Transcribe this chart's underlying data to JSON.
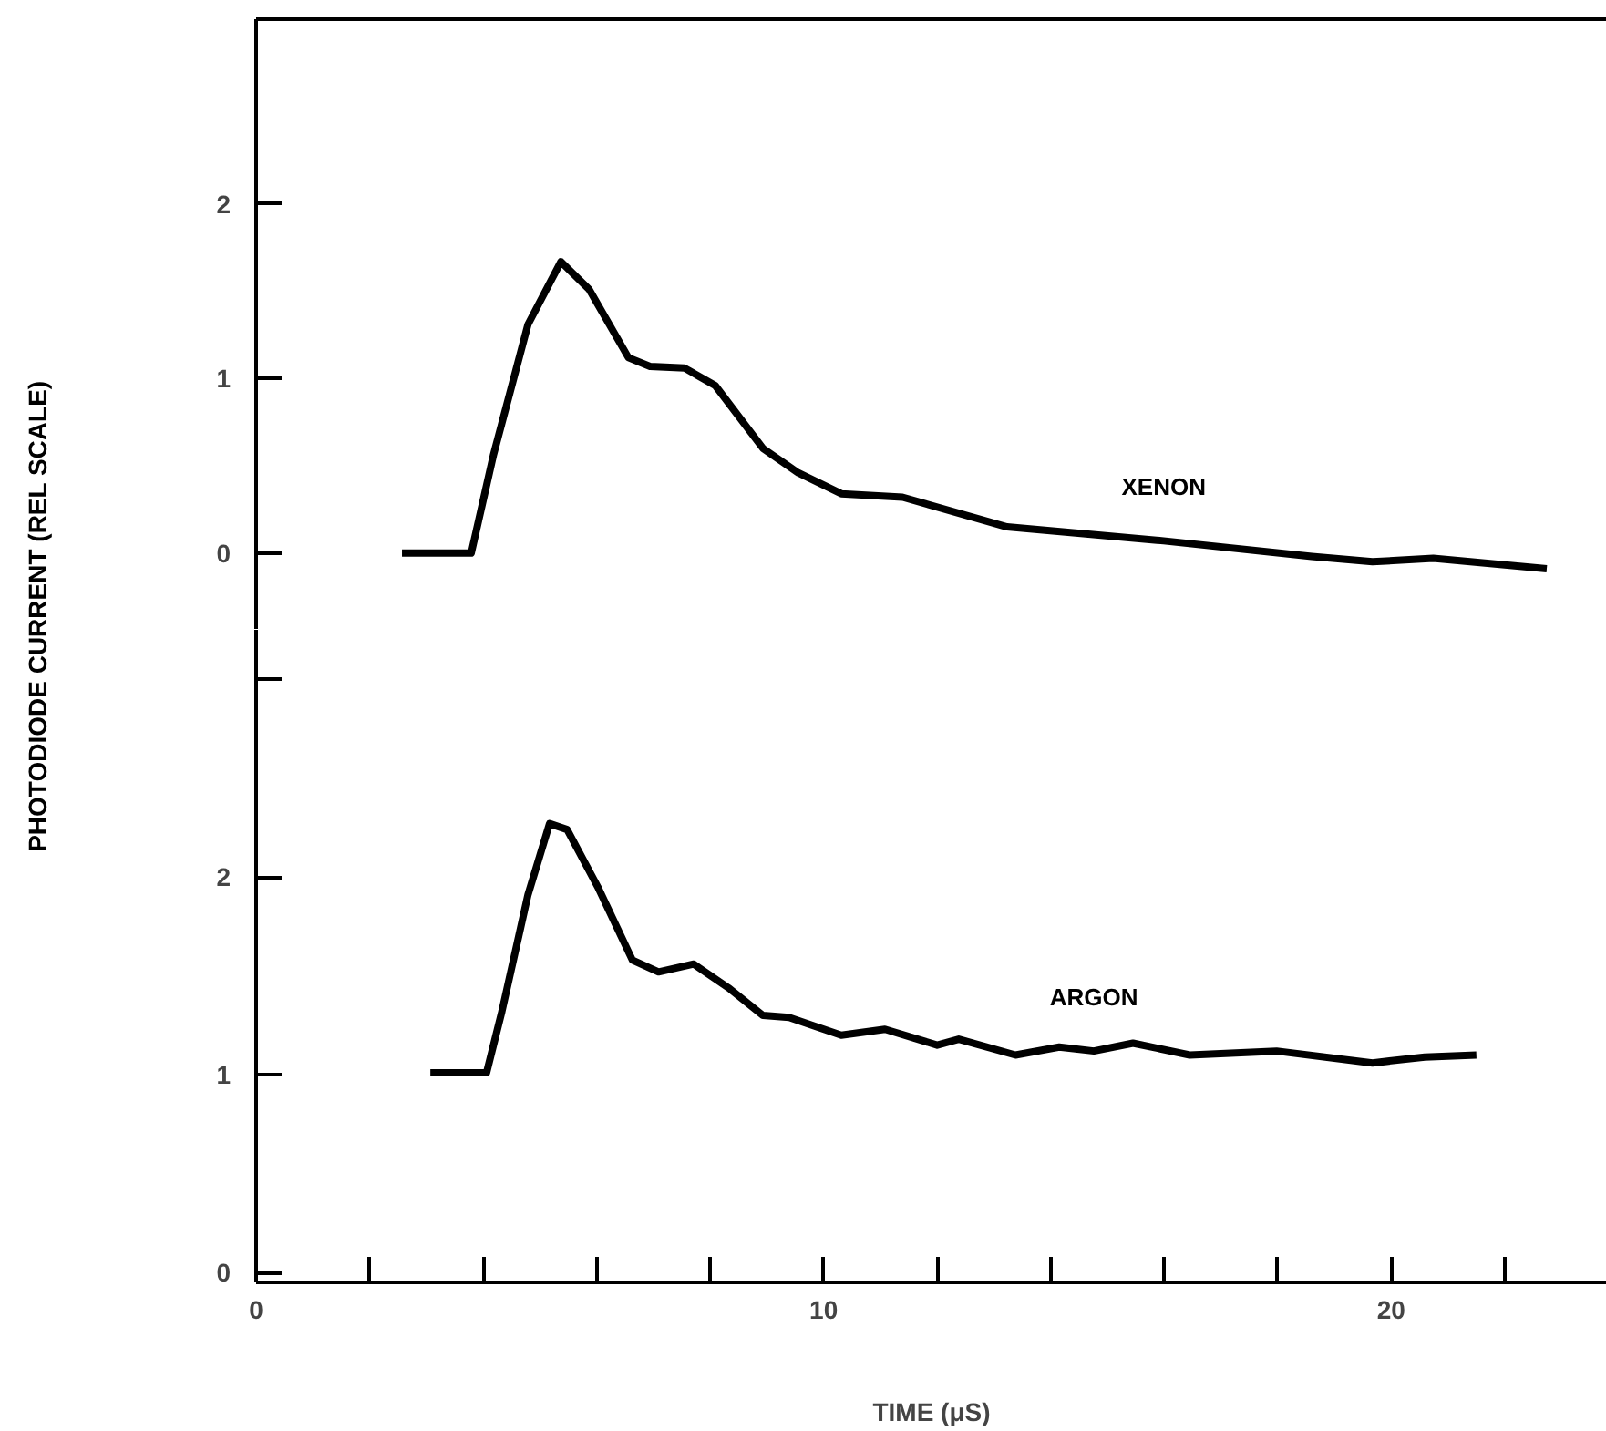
{
  "chart_data": [
    {
      "type": "line",
      "ylabel": "PHOTODIODE CURRENT (REL SCALE)",
      "xlim": [
        0,
        23.8
      ],
      "ylim": [
        -0.44,
        3.06
      ],
      "yticks": [
        0,
        1,
        2
      ],
      "tick_labels": "y",
      "grid": false,
      "series": [
        {
          "name": "XENON",
          "color": "#000000",
          "x": [
            2.57,
            3.79,
            4.18,
            4.79,
            5.37,
            5.87,
            6.56,
            6.94,
            7.55,
            8.09,
            8.93,
            9.55,
            10.31,
            11.39,
            13.23,
            15.99,
            18.6,
            19.67,
            20.74,
            22.74
          ],
          "values": [
            0,
            0,
            0.56,
            1.31,
            1.67,
            1.51,
            1.12,
            1.07,
            1.06,
            0.96,
            0.6,
            0.46,
            0.34,
            0.32,
            0.15,
            0.07,
            -0.02,
            -0.05,
            -0.03,
            -0.09
          ]
        }
      ]
    },
    {
      "type": "line",
      "xlabel": "TIME (μS)",
      "xlim": [
        0,
        23.8
      ],
      "ylim": [
        -0.05,
        3.25
      ],
      "yticks": [
        0,
        1,
        2,
        {
          "value": 3,
          "label": null
        }
      ],
      "xticks": [
        0,
        {
          "value": 2,
          "label": null
        },
        {
          "value": 4,
          "label": null
        },
        {
          "value": 6,
          "label": null
        },
        {
          "value": 8,
          "label": null
        },
        10,
        {
          "value": 12,
          "label": null
        },
        {
          "value": 14,
          "label": null
        },
        {
          "value": 16,
          "label": null
        },
        {
          "value": 18,
          "label": null
        },
        20,
        {
          "value": 22,
          "label": null
        }
      ],
      "grid": false,
      "series": [
        {
          "name": "ARGON",
          "color": "#000000",
          "x": [
            3.07,
            4.06,
            4.33,
            4.79,
            5.17,
            5.48,
            6.02,
            6.63,
            7.09,
            7.71,
            8.32,
            8.93,
            9.39,
            10.31,
            11.08,
            12.0,
            12.38,
            13.38,
            14.15,
            14.76,
            15.45,
            16.45,
            17.98,
            19.67,
            20.59,
            21.5
          ],
          "values": [
            1.01,
            1.01,
            1.32,
            1.91,
            2.27,
            2.24,
            1.95,
            1.58,
            1.52,
            1.56,
            1.44,
            1.3,
            1.29,
            1.2,
            1.23,
            1.15,
            1.18,
            1.1,
            1.14,
            1.12,
            1.16,
            1.1,
            1.12,
            1.06,
            1.09,
            1.1
          ]
        }
      ]
    }
  ]
}
